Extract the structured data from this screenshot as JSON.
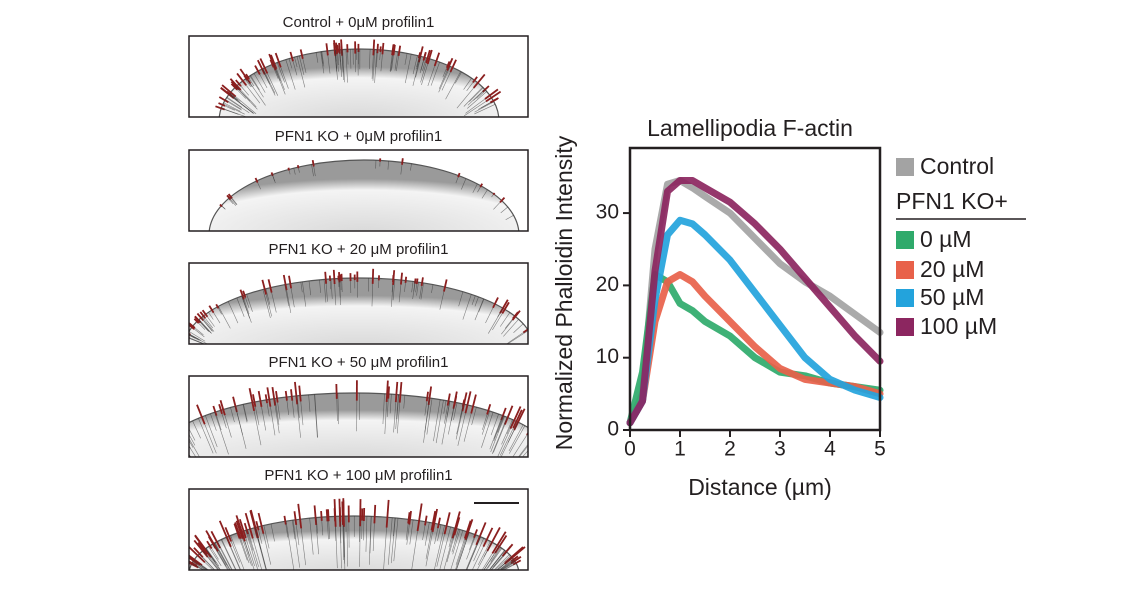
{
  "panels": [
    {
      "label": "Control + 0μM profilin1"
    },
    {
      "label": "PFN1 KO + 0μM profilin1"
    },
    {
      "label": "PFN1 KO + 20 μM profilin1"
    },
    {
      "label": "PFN1 KO + 50 μM profilin1"
    },
    {
      "label": "PFN1 KO + 100 μM profilin1"
    }
  ],
  "chart_data": {
    "type": "line",
    "title": "Lamellipodia F-actin",
    "x_label": "Distance (µm)",
    "y_label": "Normalized Phalloidin Intensity",
    "legend_title": "PFN1 KO+",
    "x": [
      0,
      0.25,
      0.5,
      0.75,
      1,
      1.25,
      1.5,
      2,
      2.5,
      3,
      3.5,
      4,
      4.5,
      5
    ],
    "series": [
      {
        "name": "Control",
        "color": "#a3a3a3",
        "values": [
          1,
          5,
          25,
          34,
          34.5,
          33.5,
          32.3,
          30,
          26.5,
          23,
          20.5,
          18.5,
          16,
          13.5
        ]
      },
      {
        "name": "0 µM",
        "color": "#2faa6b",
        "values": [
          1,
          8,
          21.5,
          20.5,
          17.5,
          16.5,
          15,
          13,
          10,
          8,
          7.5,
          6.5,
          6,
          5.5
        ]
      },
      {
        "name": "20 µM",
        "color": "#e8614a",
        "values": [
          1,
          4,
          15,
          20.5,
          21.5,
          20.5,
          18.5,
          15,
          11.5,
          8.5,
          7,
          6.5,
          6,
          5
        ]
      },
      {
        "name": "50 µM",
        "color": "#23a3dc",
        "values": [
          1,
          4,
          18,
          27,
          29,
          28.5,
          27,
          23.5,
          19,
          14.5,
          10,
          7,
          5.5,
          4.5
        ]
      },
      {
        "name": "100 µM",
        "color": "#8c2660",
        "values": [
          1,
          4,
          22,
          33,
          34.5,
          34.5,
          33.5,
          31.5,
          28.5,
          25,
          21,
          17,
          13,
          9.5
        ]
      }
    ],
    "xlim": [
      0,
      5
    ],
    "ylim": [
      0,
      39
    ],
    "xticks": [
      0,
      1,
      2,
      3,
      4,
      5
    ],
    "yticks": [
      0,
      10,
      20,
      30
    ]
  }
}
